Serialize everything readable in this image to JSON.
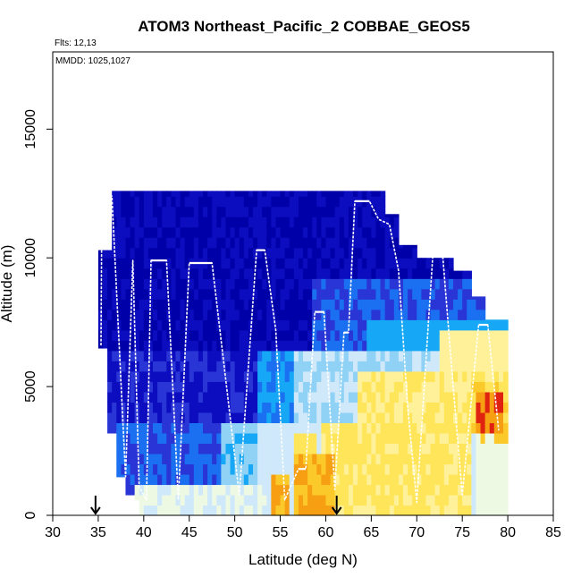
{
  "chart_data": {
    "type": "heatmap",
    "title": "ATOM3 Northeast_Pacific_2 COBBAE_GEOS5",
    "annotations": {
      "flights": "Flts: 12,13",
      "mmdd": "MMDD: 1025,1027"
    },
    "xlabel": "Latitude (deg N)",
    "ylabel": "Altitude (m)",
    "xlim": [
      30,
      85
    ],
    "ylim": [
      0,
      18000
    ],
    "x_ticks": [
      30,
      35,
      40,
      45,
      50,
      55,
      60,
      65,
      70,
      75,
      80,
      85
    ],
    "y_ticks": [
      0,
      5000,
      10000,
      15000
    ],
    "x_tick_labels": [
      "30",
      "35",
      "40",
      "45",
      "50",
      "55",
      "60",
      "65",
      "70",
      "75",
      "80",
      "85"
    ],
    "y_tick_labels": [
      "0",
      "5000",
      "10000",
      "15000"
    ],
    "grid": false,
    "colorscale": [
      "#eef9e4",
      "#fff199",
      "#ffe55a",
      "#fbc92a",
      "#f79f12",
      "#e02310"
    ],
    "blue_colorscale": [
      "#0000a8",
      "#0d0dc0",
      "#2a35d6",
      "#1a70f0",
      "#16a8f6",
      "#8fd2f6",
      "#cfe9fb"
    ],
    "markers": [
      34.7,
      61.2
    ],
    "flight_track": [
      [
        35.3,
        6600
      ],
      [
        35.4,
        12400
      ],
      [
        36.5,
        12400
      ],
      [
        38.0,
        1500
      ],
      [
        38.8,
        9900
      ],
      [
        39.5,
        1100
      ],
      [
        40.3,
        600
      ],
      [
        40.8,
        9900
      ],
      [
        42.5,
        9900
      ],
      [
        43.8,
        600
      ],
      [
        45.0,
        9800
      ],
      [
        47.5,
        9800
      ],
      [
        50.5,
        800
      ],
      [
        52.4,
        10300
      ],
      [
        53.3,
        10300
      ],
      [
        54.5,
        7200
      ],
      [
        55.5,
        600
      ],
      [
        57.0,
        1800
      ],
      [
        57.8,
        1800
      ],
      [
        58.8,
        7900
      ],
      [
        59.8,
        7900
      ],
      [
        61.0,
        1000
      ],
      [
        62.0,
        7100
      ],
      [
        62.5,
        7100
      ],
      [
        63.2,
        12200
      ],
      [
        64.8,
        12200
      ],
      [
        65.8,
        11500
      ],
      [
        67.0,
        11300
      ],
      [
        68.0,
        9500
      ],
      [
        69.0,
        4200
      ],
      [
        70.0,
        500
      ],
      [
        71.0,
        6000
      ],
      [
        71.8,
        10300
      ],
      [
        72.8,
        10300
      ],
      [
        74.0,
        5000
      ],
      [
        75.0,
        800
      ],
      [
        76.0,
        4500
      ],
      [
        76.8,
        7400
      ],
      [
        77.8,
        7400
      ],
      [
        79.0,
        3300
      ]
    ]
  }
}
